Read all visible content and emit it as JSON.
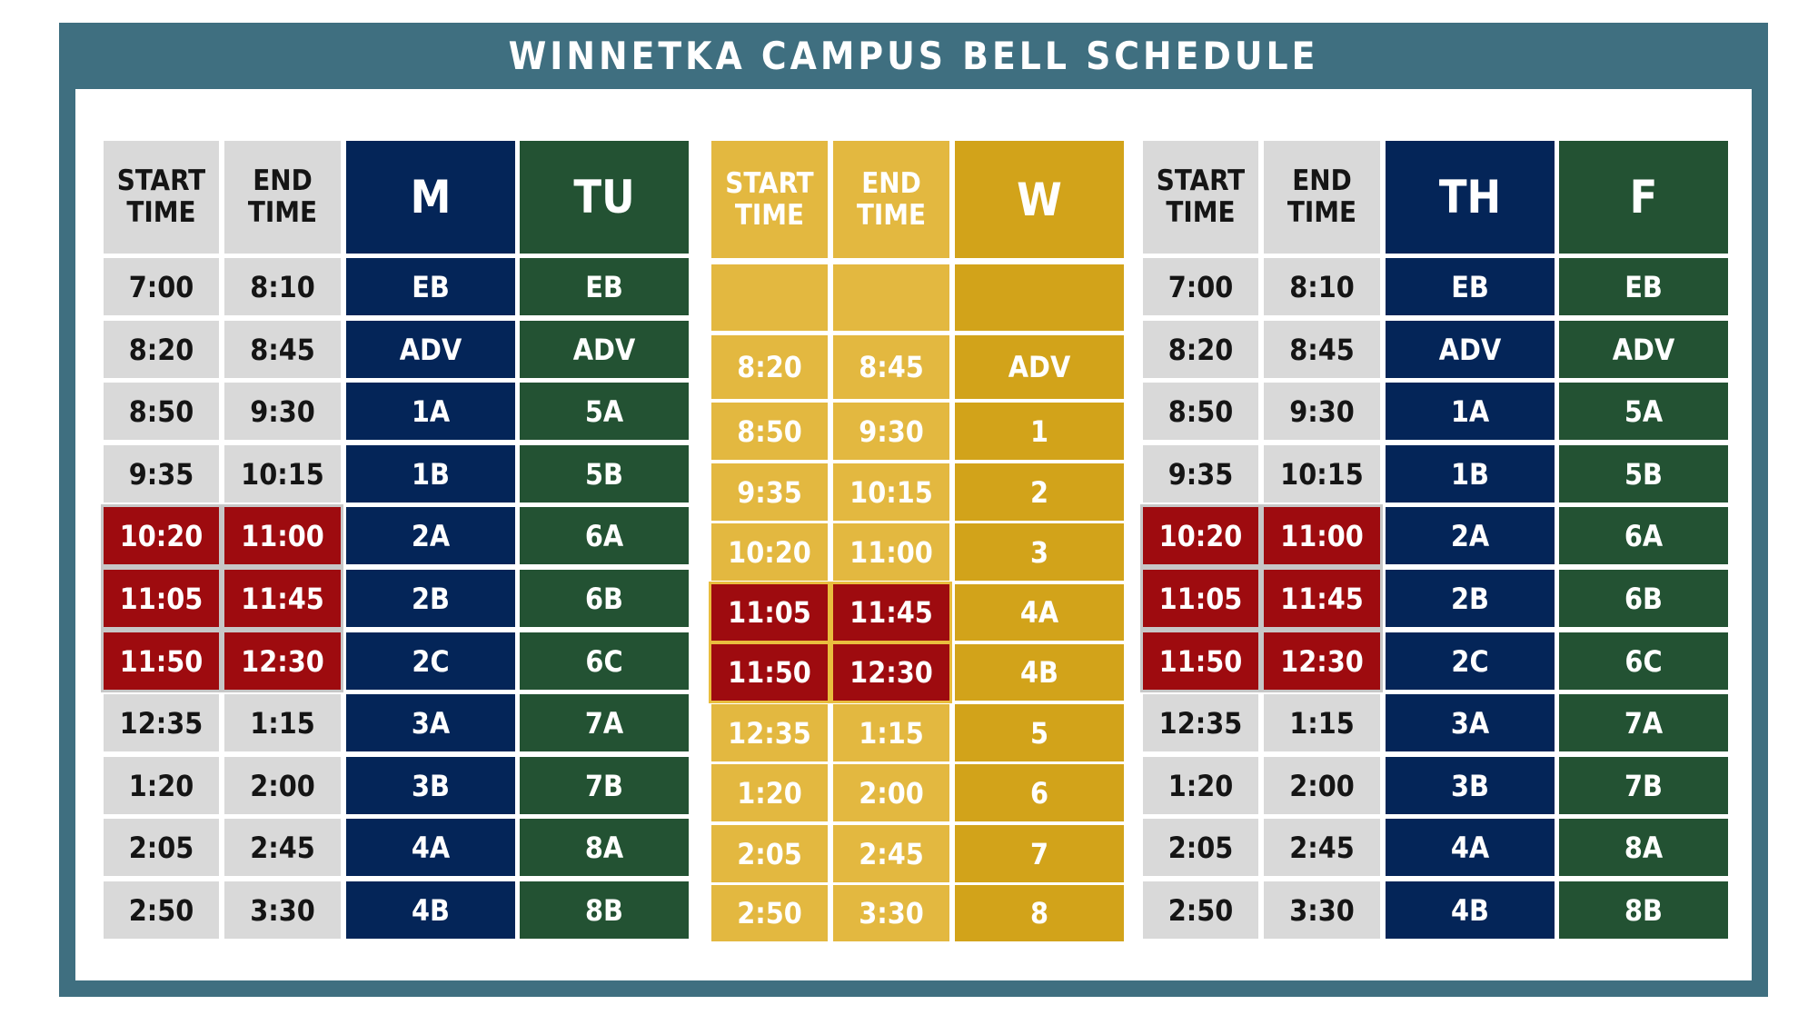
{
  "title": "WINNETKA CAMPUS BELL SCHEDULE",
  "colors": {
    "frame": "#3f6f80",
    "monday_thursday": "#042558",
    "tuesday_friday": "#235233",
    "wednesday": "#d2a31a",
    "wednesday_time": "#e3b840",
    "time_cell": "#d9d9d9",
    "highlight": "#9e0b0f"
  },
  "left_block": {
    "headers": [
      "START TIME",
      "END TIME",
      "M",
      "TU"
    ],
    "rows": [
      {
        "start": "7:00",
        "end": "8:10",
        "m": "EB",
        "tu": "EB",
        "highlight": false
      },
      {
        "start": "8:20",
        "end": "8:45",
        "m": "ADV",
        "tu": "ADV",
        "highlight": false
      },
      {
        "start": "8:50",
        "end": "9:30",
        "m": "1A",
        "tu": "5A",
        "highlight": false
      },
      {
        "start": "9:35",
        "end": "10:15",
        "m": "1B",
        "tu": "5B",
        "highlight": false
      },
      {
        "start": "10:20",
        "end": "11:00",
        "m": "2A",
        "tu": "6A",
        "highlight": true
      },
      {
        "start": "11:05",
        "end": "11:45",
        "m": "2B",
        "tu": "6B",
        "highlight": true
      },
      {
        "start": "11:50",
        "end": "12:30",
        "m": "2C",
        "tu": "6C",
        "highlight": true
      },
      {
        "start": "12:35",
        "end": "1:15",
        "m": "3A",
        "tu": "7A",
        "highlight": false
      },
      {
        "start": "1:20",
        "end": "2:00",
        "m": "3B",
        "tu": "7B",
        "highlight": false
      },
      {
        "start": "2:05",
        "end": "2:45",
        "m": "4A",
        "tu": "8A",
        "highlight": false
      },
      {
        "start": "2:50",
        "end": "3:30",
        "m": "4B",
        "tu": "8B",
        "highlight": false
      }
    ]
  },
  "middle_block": {
    "headers": [
      "START TIME",
      "END TIME",
      "W"
    ],
    "rows": [
      {
        "start": "",
        "end": "",
        "w": "",
        "highlight": false
      },
      {
        "start": "8:20",
        "end": "8:45",
        "w": "ADV",
        "highlight": false
      },
      {
        "start": "8:50",
        "end": "9:30",
        "w": "1",
        "highlight": false
      },
      {
        "start": "9:35",
        "end": "10:15",
        "w": "2",
        "highlight": false
      },
      {
        "start": "10:20",
        "end": "11:00",
        "w": "3",
        "highlight": false
      },
      {
        "start": "11:05",
        "end": "11:45",
        "w": "4A",
        "highlight": true
      },
      {
        "start": "11:50",
        "end": "12:30",
        "w": "4B",
        "highlight": true
      },
      {
        "start": "12:35",
        "end": "1:15",
        "w": "5",
        "highlight": false
      },
      {
        "start": "1:20",
        "end": "2:00",
        "w": "6",
        "highlight": false
      },
      {
        "start": "2:05",
        "end": "2:45",
        "w": "7",
        "highlight": false
      },
      {
        "start": "2:50",
        "end": "3:30",
        "w": "8",
        "highlight": false
      }
    ]
  },
  "right_block": {
    "headers": [
      "START TIME",
      "END TIME",
      "TH",
      "F"
    ],
    "rows": [
      {
        "start": "7:00",
        "end": "8:10",
        "th": "EB",
        "f": "EB",
        "highlight": false
      },
      {
        "start": "8:20",
        "end": "8:45",
        "th": "ADV",
        "f": "ADV",
        "highlight": false
      },
      {
        "start": "8:50",
        "end": "9:30",
        "th": "1A",
        "f": "5A",
        "highlight": false
      },
      {
        "start": "9:35",
        "end": "10:15",
        "th": "1B",
        "f": "5B",
        "highlight": false
      },
      {
        "start": "10:20",
        "end": "11:00",
        "th": "2A",
        "f": "6A",
        "highlight": true
      },
      {
        "start": "11:05",
        "end": "11:45",
        "th": "2B",
        "f": "6B",
        "highlight": true
      },
      {
        "start": "11:50",
        "end": "12:30",
        "th": "2C",
        "f": "6C",
        "highlight": true
      },
      {
        "start": "12:35",
        "end": "1:15",
        "th": "3A",
        "f": "7A",
        "highlight": false
      },
      {
        "start": "1:20",
        "end": "2:00",
        "th": "3B",
        "f": "7B",
        "highlight": false
      },
      {
        "start": "2:05",
        "end": "2:45",
        "th": "4A",
        "f": "8A",
        "highlight": false
      },
      {
        "start": "2:50",
        "end": "3:30",
        "th": "4B",
        "f": "8B",
        "highlight": false
      }
    ]
  }
}
